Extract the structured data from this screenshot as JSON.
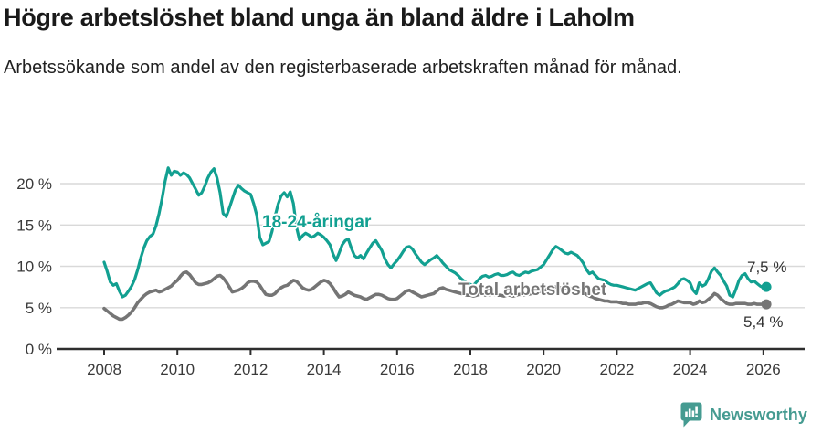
{
  "header": {
    "title": "Högre arbetslöshet bland unga än bland äldre i Laholm",
    "subtitle": "Arbetssökande som andel av den registerbaserade arbetskraften månad för månad."
  },
  "chart_data": {
    "type": "line",
    "title": "Högre arbetslöshet bland unga än bland äldre i Laholm",
    "xlabel": "",
    "ylabel": "",
    "x_start": 2008.0,
    "x_step": "monthly",
    "xlim": [
      2007.5,
      2027.2
    ],
    "ylim": [
      0,
      22.5
    ],
    "grid": "horizontal",
    "legend_position": "inline-labels",
    "yticks": [
      {
        "value": 0,
        "label": "0 %"
      },
      {
        "value": 5,
        "label": "5 %"
      },
      {
        "value": 10,
        "label": "10 %"
      },
      {
        "value": 15,
        "label": "15 %"
      },
      {
        "value": 20,
        "label": "20 %"
      }
    ],
    "xticks": [
      {
        "value": 2008,
        "label": "2008"
      },
      {
        "value": 2010,
        "label": "2010"
      },
      {
        "value": 2012,
        "label": "2012"
      },
      {
        "value": 2014,
        "label": "2014"
      },
      {
        "value": 2016,
        "label": "2016"
      },
      {
        "value": 2018,
        "label": "2018"
      },
      {
        "value": 2020,
        "label": "2020"
      },
      {
        "value": 2022,
        "label": "2022"
      },
      {
        "value": 2024,
        "label": "2024"
      },
      {
        "value": 2026,
        "label": "2026"
      }
    ],
    "colors": {
      "grid": "#d9d9d9",
      "axis": "#2e2e2e",
      "accent_teal": "#12a091",
      "gray": "#757575"
    },
    "series": [
      {
        "id": "youth",
        "label": "18-24-åringar",
        "end_label": "7,5 %",
        "last_value": 7.5,
        "color": "#12a091",
        "stroke_width": 3.2,
        "values": [
          10.5,
          9.4,
          8.1,
          7.7,
          7.9,
          7.0,
          6.3,
          6.5,
          7.0,
          7.6,
          8.4,
          9.6,
          11.0,
          12.2,
          13.1,
          13.6,
          13.9,
          14.9,
          16.4,
          18.2,
          20.3,
          21.9,
          21.0,
          21.5,
          21.4,
          21.0,
          21.3,
          21.1,
          20.7,
          20.0,
          19.3,
          18.6,
          18.9,
          19.7,
          20.7,
          21.4,
          21.8,
          20.7,
          18.9,
          16.4,
          16.0,
          17.0,
          18.1,
          19.2,
          19.8,
          19.4,
          19.1,
          18.9,
          18.7,
          17.6,
          16.2,
          13.5,
          12.6,
          12.8,
          13.0,
          14.2,
          16.0,
          17.5,
          18.5,
          18.9,
          18.4,
          19.0,
          17.6,
          14.8,
          13.2,
          13.7,
          14.0,
          13.8,
          13.5,
          13.7,
          14.0,
          13.8,
          13.5,
          13.1,
          12.6,
          11.5,
          10.7,
          11.6,
          12.6,
          13.1,
          13.3,
          12.2,
          11.3,
          11.0,
          11.3,
          10.9,
          11.6,
          12.2,
          12.8,
          13.1,
          12.5,
          11.9,
          10.9,
          10.2,
          9.8,
          10.3,
          10.7,
          11.2,
          11.8,
          12.3,
          12.4,
          12.1,
          11.5,
          11.0,
          10.5,
          10.2,
          10.5,
          10.8,
          11.0,
          11.3,
          10.9,
          10.4,
          10.0,
          9.6,
          9.4,
          9.2,
          8.9,
          8.5,
          8.2,
          8.0,
          7.8,
          7.7,
          8.1,
          8.5,
          8.8,
          8.9,
          8.7,
          8.8,
          9.0,
          9.1,
          8.9,
          8.9,
          9.0,
          9.2,
          9.3,
          9.0,
          8.9,
          9.1,
          9.3,
          9.2,
          9.4,
          9.5,
          9.6,
          9.9,
          10.2,
          10.8,
          11.4,
          12.0,
          12.4,
          12.2,
          11.9,
          11.6,
          11.5,
          11.7,
          11.5,
          11.3,
          10.9,
          10.4,
          9.6,
          9.1,
          9.3,
          8.9,
          8.5,
          8.4,
          8.3,
          8.0,
          7.8,
          7.7,
          7.7,
          7.6,
          7.5,
          7.4,
          7.3,
          7.2,
          7.1,
          7.3,
          7.5,
          7.7,
          7.9,
          8.0,
          7.4,
          6.8,
          6.5,
          6.8,
          7.0,
          7.1,
          7.3,
          7.5,
          7.9,
          8.4,
          8.5,
          8.3,
          8.0,
          7.1,
          6.7,
          8.0,
          7.6,
          7.8,
          8.5,
          9.4,
          9.8,
          9.3,
          8.9,
          8.2,
          7.6,
          6.5,
          6.3,
          7.2,
          8.3,
          8.9,
          9.1,
          8.5,
          8.1,
          8.2,
          7.9,
          7.6,
          7.4,
          7.5
        ]
      },
      {
        "id": "total",
        "label": "Total arbetslöshet",
        "end_label": "5,4 %",
        "last_value": 5.4,
        "color": "#757575",
        "stroke_width": 3.6,
        "values": [
          4.9,
          4.6,
          4.3,
          4.0,
          3.8,
          3.6,
          3.6,
          3.8,
          4.1,
          4.5,
          5.0,
          5.6,
          6.0,
          6.4,
          6.7,
          6.9,
          7.0,
          7.1,
          6.9,
          7.0,
          7.2,
          7.4,
          7.6,
          8.0,
          8.3,
          8.8,
          9.2,
          9.3,
          9.0,
          8.5,
          8.0,
          7.8,
          7.8,
          7.9,
          8.0,
          8.2,
          8.5,
          8.8,
          8.9,
          8.6,
          8.1,
          7.5,
          6.9,
          7.0,
          7.1,
          7.3,
          7.6,
          8.0,
          8.2,
          8.2,
          8.1,
          7.7,
          7.1,
          6.6,
          6.5,
          6.5,
          6.7,
          7.1,
          7.4,
          7.6,
          7.7,
          8.0,
          8.3,
          8.2,
          7.8,
          7.4,
          7.2,
          7.1,
          7.2,
          7.5,
          7.8,
          8.1,
          8.3,
          8.2,
          7.9,
          7.4,
          6.8,
          6.3,
          6.4,
          6.6,
          6.9,
          6.7,
          6.5,
          6.4,
          6.3,
          6.1,
          6.0,
          6.2,
          6.4,
          6.6,
          6.6,
          6.5,
          6.3,
          6.1,
          6.0,
          6.0,
          6.1,
          6.4,
          6.7,
          7.0,
          7.1,
          6.9,
          6.7,
          6.5,
          6.3,
          6.4,
          6.5,
          6.6,
          6.7,
          7.0,
          7.3,
          7.4,
          7.2,
          7.1,
          7.0,
          6.9,
          6.8,
          6.7,
          6.6,
          6.5,
          6.5,
          6.4,
          6.5,
          6.6,
          6.6,
          6.5,
          6.5,
          6.6,
          6.6,
          6.5,
          6.5,
          6.4,
          6.5,
          6.5,
          6.4,
          6.5,
          6.6,
          6.6,
          6.5,
          6.6,
          6.7,
          6.8,
          6.9,
          7.0,
          7.1,
          7.2,
          7.3,
          7.4,
          7.5,
          7.4,
          7.4,
          7.3,
          7.4,
          7.3,
          7.2,
          7.1,
          7.0,
          6.8,
          6.6,
          6.4,
          6.3,
          6.1,
          6.0,
          5.9,
          5.8,
          5.8,
          5.7,
          5.7,
          5.7,
          5.6,
          5.5,
          5.5,
          5.4,
          5.4,
          5.4,
          5.5,
          5.5,
          5.6,
          5.6,
          5.5,
          5.3,
          5.1,
          5.0,
          5.0,
          5.1,
          5.3,
          5.4,
          5.6,
          5.8,
          5.7,
          5.6,
          5.6,
          5.6,
          5.4,
          5.5,
          5.8,
          5.6,
          5.7,
          6.0,
          6.3,
          6.7,
          6.5,
          6.1,
          5.8,
          5.5,
          5.4,
          5.4,
          5.5,
          5.5,
          5.5,
          5.5,
          5.4,
          5.4,
          5.5,
          5.4,
          5.4,
          5.4,
          5.4
        ]
      }
    ]
  },
  "footer": {
    "brand": "Newsworthy",
    "logo_color": "#459b91"
  }
}
